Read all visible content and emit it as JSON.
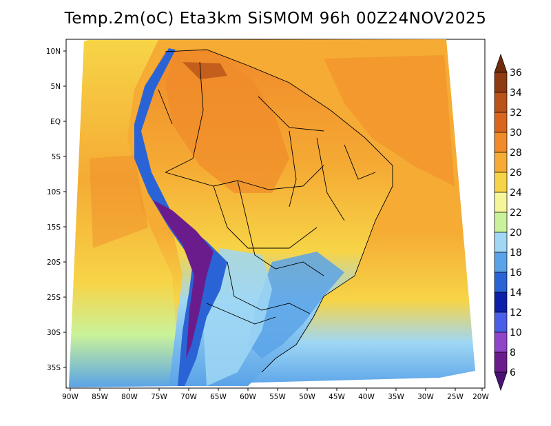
{
  "title": "Temp.2m(oC) Eta3km SiSMOM 96h 00Z24NOV2025",
  "lat_labels": [
    "10N",
    "5N",
    "EQ",
    "5S",
    "10S",
    "15S",
    "20S",
    "25S",
    "30S",
    "35S"
  ],
  "lon_labels": [
    "90W",
    "85W",
    "80W",
    "75W",
    "70W",
    "65W",
    "60W",
    "55W",
    "50W",
    "45W",
    "40W",
    "35W",
    "30W",
    "25W",
    "20W"
  ],
  "colorbar": {
    "labels": [
      "36",
      "34",
      "32",
      "30",
      "28",
      "26",
      "24",
      "22",
      "20",
      "18",
      "16",
      "14",
      "12",
      "10",
      "8",
      "6"
    ],
    "colors": [
      "#6e2c0a",
      "#8f3a10",
      "#b8531a",
      "#d9661e",
      "#f08a2a",
      "#f5ab34",
      "#f7d447",
      "#f7f59a",
      "#c9f29a",
      "#9fd7f4",
      "#5aa3e8",
      "#2a63d6",
      "#0b1fa8",
      "#4a5fe8",
      "#8f45c8",
      "#6b1c8c",
      "#4b1275"
    ]
  },
  "legend_title": "Temp.2m(oC)"
}
